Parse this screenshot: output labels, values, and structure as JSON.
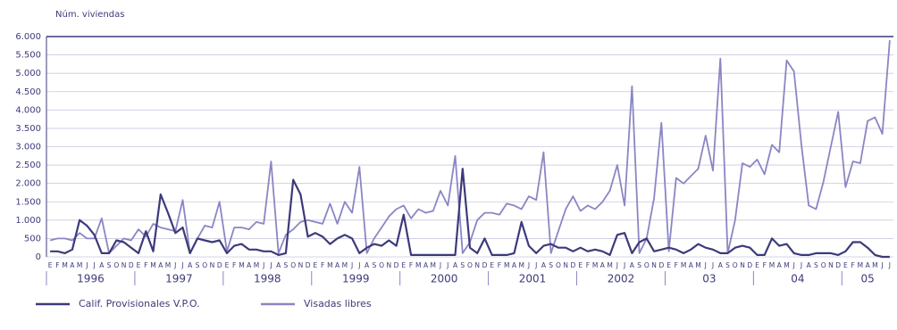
{
  "chart_data": {
    "type": "line",
    "y_label": "Núm. viviendas",
    "categories": [
      "E",
      "F",
      "M",
      "A",
      "M",
      "J",
      "J",
      "A",
      "S",
      "O",
      "N",
      "D",
      "E",
      "F",
      "M",
      "A",
      "M",
      "J",
      "J",
      "A",
      "S",
      "O",
      "N",
      "D",
      "E",
      "F",
      "M",
      "A",
      "M",
      "J",
      "J",
      "A",
      "S",
      "O",
      "N",
      "D",
      "E",
      "F",
      "M",
      "A",
      "M",
      "J",
      "J",
      "A",
      "S",
      "O",
      "N",
      "D",
      "E",
      "F",
      "M",
      "A",
      "M",
      "J",
      "J",
      "A",
      "S",
      "O",
      "N",
      "D",
      "E",
      "F",
      "M",
      "A",
      "M",
      "J",
      "J",
      "A",
      "S",
      "O",
      "N",
      "D",
      "E",
      "F",
      "M",
      "A",
      "M",
      "J",
      "J",
      "A",
      "S",
      "O",
      "N",
      "D",
      "E",
      "F",
      "M",
      "A",
      "M",
      "J",
      "J",
      "A",
      "S",
      "O",
      "N",
      "D",
      "E",
      "F",
      "M",
      "A",
      "M",
      "J",
      "J",
      "A",
      "S",
      "O",
      "N",
      "D",
      "E",
      "F",
      "M",
      "A",
      "M",
      "J",
      "J"
    ],
    "years": [
      "1996",
      "1997",
      "1998",
      "1999",
      "2000",
      "2001",
      "2002",
      "03",
      "04",
      "05"
    ],
    "series": [
      {
        "name": "Calif. Provisionales V.P.O.",
        "color": "#3c3a7a",
        "values": [
          150,
          150,
          100,
          200,
          1000,
          850,
          600,
          100,
          100,
          450,
          400,
          250,
          100,
          700,
          150,
          1700,
          1200,
          650,
          800,
          100,
          500,
          450,
          400,
          450,
          100,
          300,
          350,
          200,
          200,
          150,
          150,
          50,
          100,
          2100,
          1700,
          550,
          650,
          550,
          350,
          500,
          600,
          500,
          100,
          250,
          350,
          300,
          450,
          300,
          1150,
          50,
          50,
          50,
          50,
          50,
          50,
          50,
          2400,
          250,
          100,
          500,
          50,
          50,
          50,
          100,
          950,
          300,
          100,
          300,
          350,
          250,
          250,
          150,
          250,
          150,
          200,
          150,
          50,
          600,
          650,
          100,
          400,
          500,
          150,
          200,
          250,
          200,
          100,
          200,
          350,
          250,
          200,
          100,
          100,
          250,
          300,
          250,
          50,
          50,
          500,
          300,
          350,
          100,
          50,
          50,
          100,
          100,
          100,
          50,
          150,
          400,
          400,
          250,
          50,
          0,
          0
        ]
      },
      {
        "name": "Visadas libres",
        "color": "#8a86c4",
        "values": [
          450,
          500,
          500,
          450,
          650,
          500,
          500,
          1050,
          100,
          300,
          500,
          450,
          750,
          550,
          900,
          800,
          750,
          700,
          1550,
          100,
          500,
          850,
          800,
          1500,
          150,
          800,
          800,
          750,
          950,
          900,
          2600,
          100,
          600,
          750,
          950,
          1000,
          950,
          900,
          1450,
          900,
          1500,
          1200,
          2450,
          100,
          500,
          800,
          1100,
          1300,
          1400,
          1050,
          1300,
          1200,
          1250,
          1800,
          1400,
          2750,
          100,
          400,
          1000,
          1200,
          1200,
          1150,
          1450,
          1400,
          1300,
          1650,
          1550,
          2850,
          100,
          700,
          1300,
          1650,
          1250,
          1400,
          1300,
          1500,
          1800,
          2500,
          1400,
          4650,
          100,
          500,
          1600,
          3650,
          150,
          2150,
          2000,
          2200,
          2400,
          3300,
          2350,
          5400,
          100,
          1000,
          2550,
          2450,
          2650,
          2250,
          3050,
          2850,
          5350,
          5050,
          3050,
          1400,
          1300,
          2050,
          3000,
          3950,
          1900,
          2600,
          2550,
          3700,
          3800,
          3350,
          5900
        ]
      }
    ],
    "ylim": [
      0,
      6000
    ],
    "yticks": [
      0,
      500,
      {
        "value": 1000,
        "label": "1.000"
      },
      {
        "value": 1500,
        "label": "1.500"
      },
      {
        "value": 2000,
        "label": "2.000"
      },
      {
        "value": 2500,
        "label": "2.500"
      },
      {
        "value": 3000,
        "label": "3.000"
      },
      {
        "value": 3500,
        "label": "3.500"
      },
      {
        "value": 4000,
        "label": "4.000"
      },
      {
        "value": 4500,
        "label": "4.500"
      },
      {
        "value": 5000,
        "label": "5.000"
      },
      {
        "value": 5500,
        "label": "5.500"
      },
      {
        "value": 6000,
        "label": "6.000"
      }
    ],
    "grid": true
  }
}
